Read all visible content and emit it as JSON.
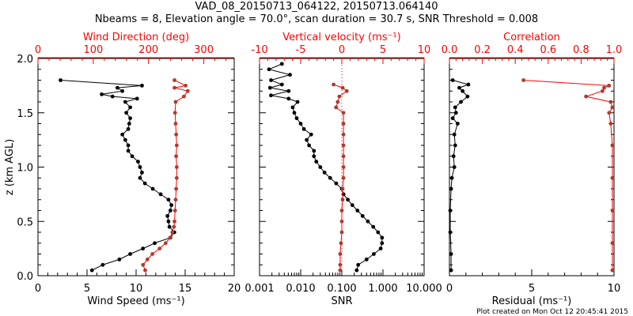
{
  "title": "VAD_08_20150713_064122, 20150713.064140",
  "subtitle": "Nbeams = 8, Elevation angle = 70.0°, scan duration = 30.7 s, SNR Threshold = 0.008",
  "footer": "Plot created on Mon Oct 12 20:45:41 2015",
  "colors": {
    "black": "#000000",
    "red": "#ff0000",
    "brown": "#b03a2e"
  },
  "chart_data": [
    {
      "type": "line",
      "ylabel": "z (km AGL)",
      "ylim": [
        0,
        2
      ],
      "yticks": [
        "0.0",
        "0.5",
        "1.0",
        "1.5",
        "2.0"
      ],
      "xlabel": "Wind Speed (ms⁻¹)",
      "xlim": [
        0,
        20
      ],
      "xticks": [
        "0",
        "5",
        "10",
        "15",
        "20"
      ],
      "x2label": "Wind Direction (deg)",
      "x2lim": [
        0,
        355
      ],
      "x2ticks": [
        "0",
        "100",
        "200",
        "300"
      ],
      "series": [
        {
          "name": "Wind Speed",
          "axis": "bottom",
          "color": "#000000",
          "z": [
            0.05,
            0.1,
            0.15,
            0.2,
            0.25,
            0.3,
            0.35,
            0.4,
            0.45,
            0.5,
            0.55,
            0.6,
            0.65,
            0.7,
            0.75,
            0.8,
            0.85,
            0.9,
            0.95,
            1.0,
            1.05,
            1.1,
            1.15,
            1.2,
            1.25,
            1.3,
            1.35,
            1.4,
            1.45,
            1.5,
            1.55,
            1.6,
            1.63,
            1.65,
            1.67,
            1.7,
            1.73,
            1.75,
            1.8
          ],
          "x": [
            5.5,
            6.6,
            8.3,
            9.4,
            10.7,
            11.9,
            13.5,
            13.9,
            13.4,
            13.3,
            13.2,
            13.5,
            13.6,
            13.3,
            12.5,
            11.7,
            10.9,
            10.4,
            10.6,
            10.4,
            10.2,
            9.6,
            9.2,
            9.2,
            8.9,
            8.6,
            9.2,
            9.3,
            9.4,
            9.0,
            9.4,
            8.9,
            10.1,
            7.6,
            6.5,
            8.6,
            8.1,
            10.6,
            2.3
          ]
        },
        {
          "name": "Wind Direction",
          "axis": "top",
          "color": "#b03a2e",
          "z": [
            0.05,
            0.1,
            0.15,
            0.2,
            0.25,
            0.3,
            0.35,
            0.4,
            0.45,
            0.5,
            0.6,
            0.7,
            0.8,
            0.9,
            1.0,
            1.1,
            1.2,
            1.3,
            1.4,
            1.5,
            1.6,
            1.65,
            1.7,
            1.73,
            1.75,
            1.8
          ],
          "x": [
            194,
            190,
            198,
            207,
            220,
            231,
            239,
            243,
            246,
            247,
            248,
            249,
            250,
            251,
            251,
            250,
            251,
            250,
            249,
            248,
            249,
            264,
            271,
            247,
            267,
            247
          ]
        }
      ]
    },
    {
      "type": "line",
      "ylim": [
        0,
        2
      ],
      "xlabel": "SNR",
      "xlim": [
        0.001,
        10
      ],
      "xlog": true,
      "xticks": [
        "0.001",
        "0.010",
        "0.100",
        "1.000",
        "10.000"
      ],
      "x2label": "Vertical velocity (ms⁻¹)",
      "x2lim": [
        -10,
        10
      ],
      "x2ticks": [
        "-10",
        "-5",
        "0",
        "5",
        "10"
      ],
      "series": [
        {
          "name": "SNR",
          "axis": "bottom",
          "color": "#000000",
          "z": [
            0.05,
            0.1,
            0.15,
            0.2,
            0.25,
            0.3,
            0.35,
            0.4,
            0.45,
            0.5,
            0.55,
            0.6,
            0.65,
            0.7,
            0.75,
            0.8,
            0.85,
            0.9,
            0.95,
            1.0,
            1.05,
            1.1,
            1.15,
            1.2,
            1.25,
            1.3,
            1.35,
            1.4,
            1.45,
            1.5,
            1.55,
            1.6,
            1.63,
            1.66,
            1.7,
            1.73,
            1.76,
            1.8,
            1.85,
            1.9,
            1.95
          ],
          "x": [
            0.23,
            0.25,
            0.4,
            0.6,
            0.88,
            0.95,
            0.95,
            0.76,
            0.58,
            0.43,
            0.32,
            0.24,
            0.18,
            0.14,
            0.11,
            0.1,
            0.073,
            0.052,
            0.038,
            0.03,
            0.024,
            0.021,
            0.021,
            0.016,
            0.014,
            0.018,
            0.012,
            0.01,
            0.008,
            0.007,
            0.0064,
            0.0084,
            0.0051,
            0.0019,
            0.0051,
            0.0018,
            0.0035,
            0.0019,
            0.0055,
            0.0017,
            0.0035
          ]
        },
        {
          "name": "Vertical velocity",
          "axis": "top",
          "color": "#b03a2e",
          "z": [
            0.05,
            0.1,
            0.2,
            0.3,
            0.4,
            0.5,
            0.6,
            0.7,
            0.8,
            0.9,
            1.0,
            1.1,
            1.2,
            1.3,
            1.4,
            1.5,
            1.55,
            1.6,
            1.65,
            1.7,
            1.73,
            1.76
          ],
          "x": [
            -0.2,
            -0.2,
            -0.2,
            -0.1,
            0,
            0,
            0,
            0.1,
            0.1,
            0.2,
            0.2,
            0.2,
            0.2,
            0.2,
            0.2,
            0.2,
            -0.7,
            -0.5,
            -0.3,
            0.6,
            0.1,
            -1.0
          ]
        }
      ],
      "reference_line": {
        "axis": "top",
        "x": 0
      }
    },
    {
      "type": "line",
      "ylim": [
        0,
        2
      ],
      "xlabel": "Residual (ms⁻¹)",
      "xlim": [
        0,
        10
      ],
      "xticks": [
        "0",
        "5",
        "10"
      ],
      "x2label": "Correlation",
      "x2lim": [
        0,
        1
      ],
      "x2ticks": [
        "0.0",
        "0.2",
        "0.4",
        "0.6",
        "0.8",
        "1.0"
      ],
      "series": [
        {
          "name": "Residual",
          "axis": "bottom",
          "color": "#000000",
          "z": [
            0.05,
            0.2,
            0.4,
            0.6,
            0.8,
            0.9,
            1.0,
            1.1,
            1.2,
            1.3,
            1.4,
            1.45,
            1.5,
            1.55,
            1.6,
            1.65,
            1.7,
            1.73,
            1.76,
            1.8
          ],
          "x": [
            0.1,
            0.1,
            0.05,
            0.05,
            0.1,
            0.15,
            0.3,
            0.25,
            0.35,
            0.3,
            0.5,
            0.2,
            0.4,
            0.35,
            0.7,
            1.1,
            0.8,
            0.6,
            1.15,
            0.2
          ]
        },
        {
          "name": "Correlation",
          "axis": "top",
          "color": "#b03a2e",
          "z": [
            0.05,
            0.3,
            0.6,
            0.9,
            1.2,
            1.4,
            1.5,
            1.55,
            1.6,
            1.65,
            1.7,
            1.73,
            1.75,
            1.8
          ],
          "x": [
            0.99,
            0.99,
            0.99,
            0.99,
            0.99,
            0.98,
            0.97,
            0.99,
            0.98,
            0.83,
            0.93,
            0.94,
            0.97,
            0.45
          ]
        }
      ]
    }
  ]
}
